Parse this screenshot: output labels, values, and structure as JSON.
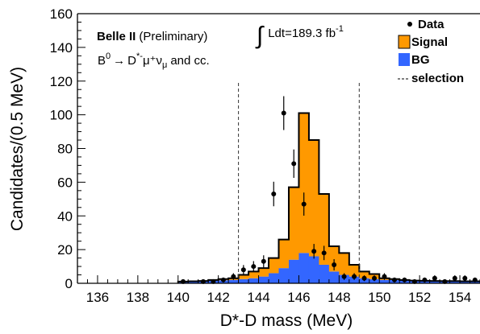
{
  "chart_data": {
    "type": "bar",
    "xlabel": "D*-D mass (MeV)",
    "ylabel": "Candidates/(0.5 MeV)",
    "xlim": [
      135,
      155
    ],
    "ylim": [
      0,
      160
    ],
    "xticks": [
      136,
      138,
      140,
      142,
      144,
      146,
      148,
      150,
      152,
      154
    ],
    "yticks": [
      0,
      20,
      40,
      60,
      80,
      100,
      120,
      140,
      160
    ],
    "grid": false,
    "legend_position": "top-right",
    "annotations": {
      "experiment": "Belle II",
      "status": "(Preliminary)",
      "decay_B": "B",
      "decay_B_sup": "0",
      "decay_arrow": "→",
      "decay_D": "D",
      "decay_D_sup": "*-",
      "decay_rest": "μ⁺ν",
      "decay_nu_sub": "μ",
      "decay_cc": "and cc.",
      "lumi_integral": "∫",
      "lumi_text": "Ldt=189.3 fb",
      "lumi_sup": "-1"
    },
    "legend": [
      {
        "label": "Data",
        "marker": "point",
        "color": "#000000"
      },
      {
        "label": "Signal",
        "marker": "box",
        "color": "#ff9900"
      },
      {
        "label": "BG",
        "marker": "box",
        "color": "#3366ff"
      },
      {
        "label": "selection",
        "marker": "dashed-line",
        "color": "#000000"
      }
    ],
    "selection_cuts": [
      143,
      149
    ],
    "bin_width": 0.5,
    "bin_edges_start": 140,
    "series": [
      {
        "name": "BG",
        "color": "#3366ff",
        "values": [
          1.0,
          1.2,
          1.4,
          1.6,
          1.8,
          2.0,
          2.5,
          3.0,
          4.0,
          6.0,
          9.0,
          14.0,
          18.0,
          16.0,
          11.0,
          7.0,
          5.0,
          4.0,
          3.0,
          2.5,
          2.0,
          2.0,
          1.8,
          1.6,
          1.5,
          1.4,
          1.3,
          1.3,
          1.2,
          1.2
        ]
      },
      {
        "name": "Signal",
        "color": "#ff9900",
        "values": [
          0.0,
          0.0,
          0.0,
          0.4,
          0.7,
          1.0,
          2.5,
          4.0,
          5.0,
          9.0,
          17.0,
          43.0,
          83.0,
          69.0,
          42.0,
          15.0,
          13.0,
          7.0,
          4.0,
          3.0,
          1.0,
          0.5,
          0.2,
          0.0,
          0.0,
          0.0,
          0.0,
          0.0,
          0.0,
          0.0
        ]
      }
    ],
    "data_points": {
      "name": "Data",
      "x": [
        140.25,
        140.75,
        141.25,
        141.75,
        142.25,
        142.75,
        143.25,
        143.75,
        144.25,
        144.75,
        145.25,
        145.75,
        146.25,
        146.75,
        147.25,
        147.75,
        148.25,
        148.75,
        149.25,
        149.75,
        150.25,
        150.75,
        151.25,
        151.75,
        152.25,
        152.75,
        153.25,
        153.75,
        154.25,
        154.75
      ],
      "y": [
        1,
        0,
        1,
        1,
        2,
        4,
        8,
        10,
        13,
        53,
        101,
        71,
        47,
        19,
        18,
        11,
        4,
        4,
        3,
        3,
        4,
        2,
        2,
        1,
        2,
        3,
        1,
        3,
        3,
        2
      ]
    }
  }
}
